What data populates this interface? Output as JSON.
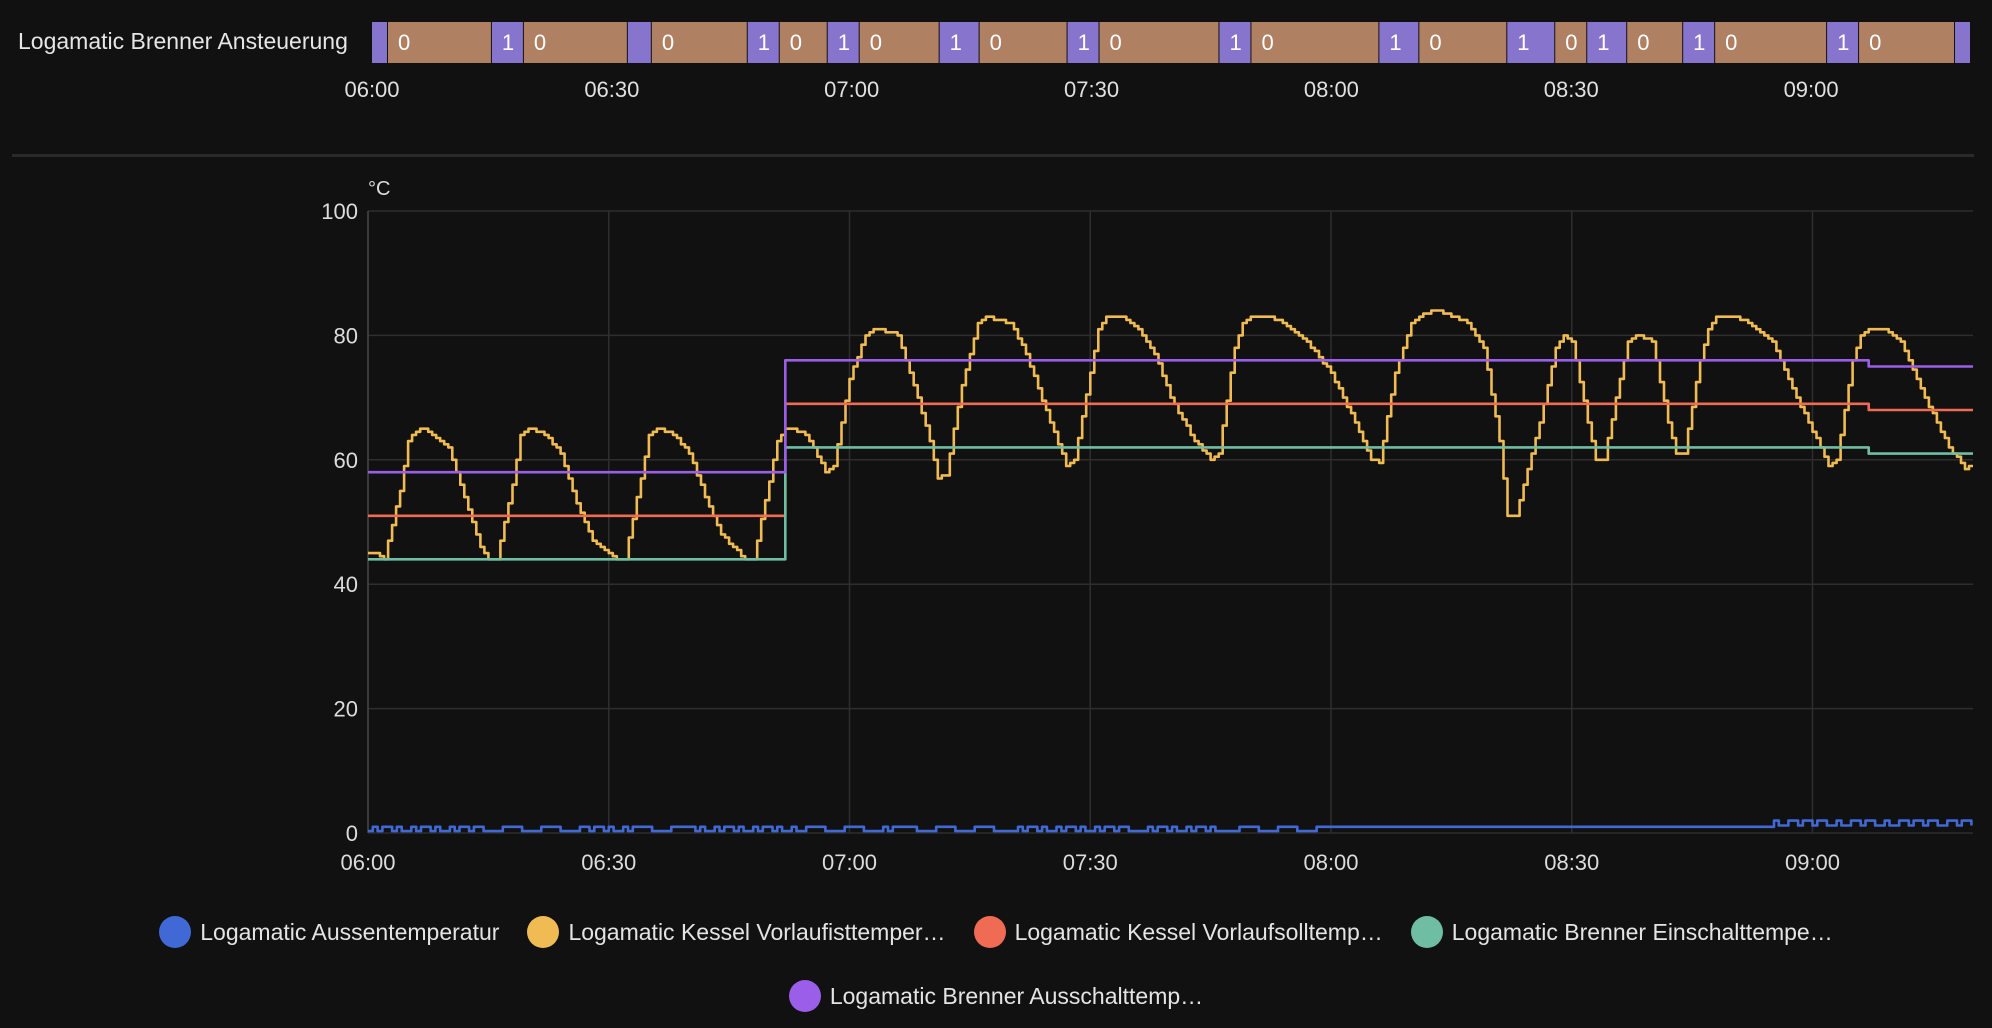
{
  "timeline": {
    "label": "Logamatic Brenner Ansteuerung",
    "colors": {
      "on": "#8774cc",
      "off": "#b08063"
    },
    "segments": [
      {
        "start": "06:00",
        "end": "06:02",
        "state": "1"
      },
      {
        "start": "06:02",
        "end": "06:15",
        "state": "0"
      },
      {
        "start": "06:15",
        "end": "06:19",
        "state": "1"
      },
      {
        "start": "06:19",
        "end": "06:32",
        "state": "0"
      },
      {
        "start": "06:32",
        "end": "06:35",
        "state": "1"
      },
      {
        "start": "06:35",
        "end": "06:47",
        "state": "0"
      },
      {
        "start": "06:47",
        "end": "06:51",
        "state": "1"
      },
      {
        "start": "06:51",
        "end": "06:57",
        "state": "0"
      },
      {
        "start": "06:57",
        "end": "07:01",
        "state": "1"
      },
      {
        "start": "07:01",
        "end": "07:11",
        "state": "0"
      },
      {
        "start": "07:11",
        "end": "07:16",
        "state": "1"
      },
      {
        "start": "07:16",
        "end": "07:27",
        "state": "0"
      },
      {
        "start": "07:27",
        "end": "07:31",
        "state": "1"
      },
      {
        "start": "07:31",
        "end": "07:46",
        "state": "0"
      },
      {
        "start": "07:46",
        "end": "07:50",
        "state": "1"
      },
      {
        "start": "07:50",
        "end": "08:06",
        "state": "0"
      },
      {
        "start": "08:06",
        "end": "08:11",
        "state": "1"
      },
      {
        "start": "08:11",
        "end": "08:22",
        "state": "0"
      },
      {
        "start": "08:22",
        "end": "08:28",
        "state": "1"
      },
      {
        "start": "08:28",
        "end": "08:32",
        "state": "0"
      },
      {
        "start": "08:32",
        "end": "08:37",
        "state": "1"
      },
      {
        "start": "08:37",
        "end": "08:44",
        "state": "0"
      },
      {
        "start": "08:44",
        "end": "08:48",
        "state": "1"
      },
      {
        "start": "08:48",
        "end": "09:02",
        "state": "0"
      },
      {
        "start": "09:02",
        "end": "09:06",
        "state": "1"
      },
      {
        "start": "09:06",
        "end": "09:18",
        "state": "0"
      },
      {
        "start": "09:18",
        "end": "09:20",
        "state": "1"
      }
    ]
  },
  "chart_data": {
    "type": "line",
    "ylabel": "°C",
    "ylim": [
      0,
      100
    ],
    "yticks": [
      "0",
      "20",
      "40",
      "60",
      "80",
      "100"
    ],
    "xlim": [
      "06:00",
      "09:20"
    ],
    "xticks": [
      "06:00",
      "06:30",
      "07:00",
      "07:30",
      "08:00",
      "08:30",
      "09:00"
    ],
    "grid": true,
    "legend_position": "bottom",
    "series": [
      {
        "name": "Logamatic Aussentemperatur",
        "color": "#4169d6",
        "style": "noisy",
        "points": [
          [
            "06:00",
            0.5
          ],
          [
            "08:00",
            0.5
          ],
          [
            "08:00",
            1
          ],
          [
            "08:55",
            1
          ],
          [
            "09:20",
            2
          ]
        ]
      },
      {
        "name": "Logamatic Kessel Vorlaufisttemper…",
        "color": "#f0bb52",
        "style": "stepped",
        "points": [
          [
            "06:00",
            45
          ],
          [
            "06:01",
            45
          ],
          [
            "06:02",
            44
          ],
          [
            "06:04",
            55
          ],
          [
            "06:05",
            63
          ],
          [
            "06:06",
            64.5
          ],
          [
            "06:07",
            65
          ],
          [
            "06:08",
            64
          ],
          [
            "06:10",
            62
          ],
          [
            "06:12",
            54
          ],
          [
            "06:14",
            46
          ],
          [
            "06:15",
            44
          ],
          [
            "06:16",
            44
          ],
          [
            "06:18",
            56
          ],
          [
            "06:19",
            64
          ],
          [
            "06:20",
            65
          ],
          [
            "06:22",
            64
          ],
          [
            "06:24",
            61
          ],
          [
            "06:26",
            53
          ],
          [
            "06:28",
            47
          ],
          [
            "06:31",
            44
          ],
          [
            "06:32",
            44
          ],
          [
            "06:34",
            57
          ],
          [
            "06:35",
            64
          ],
          [
            "06:36",
            65
          ],
          [
            "06:38",
            64
          ],
          [
            "06:40",
            61
          ],
          [
            "06:42",
            54
          ],
          [
            "06:44",
            48
          ],
          [
            "06:47",
            44
          ],
          [
            "06:48",
            44
          ],
          [
            "06:51",
            63
          ],
          [
            "06:52",
            65
          ],
          [
            "06:54",
            64.5
          ],
          [
            "06:55",
            63
          ],
          [
            "06:56",
            60.5
          ],
          [
            "06:57",
            58
          ],
          [
            "06:58",
            59
          ],
          [
            "07:00",
            73
          ],
          [
            "07:02",
            80
          ],
          [
            "07:03",
            81
          ],
          [
            "07:05",
            80.5
          ],
          [
            "07:06",
            80
          ],
          [
            "07:08",
            72
          ],
          [
            "07:10",
            63
          ],
          [
            "07:11",
            57
          ],
          [
            "07:12",
            57.5
          ],
          [
            "07:14",
            72
          ],
          [
            "07:16",
            82
          ],
          [
            "07:17",
            83
          ],
          [
            "07:18",
            82.5
          ],
          [
            "07:20",
            82
          ],
          [
            "07:22",
            77
          ],
          [
            "07:25",
            66
          ],
          [
            "07:27",
            59
          ],
          [
            "07:28",
            60
          ],
          [
            "07:30",
            74
          ],
          [
            "07:31",
            81
          ],
          [
            "07:32",
            83
          ],
          [
            "07:34",
            83
          ],
          [
            "07:36",
            81
          ],
          [
            "07:38",
            77
          ],
          [
            "07:40",
            70
          ],
          [
            "07:43",
            63
          ],
          [
            "07:45",
            60
          ],
          [
            "07:46",
            61
          ],
          [
            "07:48",
            78
          ],
          [
            "07:49",
            82
          ],
          [
            "07:50",
            83
          ],
          [
            "07:52",
            83
          ],
          [
            "07:54",
            82
          ],
          [
            "07:57",
            79
          ],
          [
            "08:00",
            74
          ],
          [
            "08:03",
            66
          ],
          [
            "08:05",
            60
          ],
          [
            "08:06",
            59.5
          ],
          [
            "08:08",
            74
          ],
          [
            "08:10",
            82
          ],
          [
            "08:11",
            83
          ],
          [
            "08:13",
            84
          ],
          [
            "08:15",
            83
          ],
          [
            "08:17",
            82
          ],
          [
            "08:19",
            78
          ],
          [
            "08:21",
            63
          ],
          [
            "08:22",
            51
          ],
          [
            "08:23",
            51
          ],
          [
            "08:26",
            66
          ],
          [
            "08:28",
            78
          ],
          [
            "08:29",
            80
          ],
          [
            "08:30",
            79
          ],
          [
            "08:32",
            66
          ],
          [
            "08:33",
            60
          ],
          [
            "08:34",
            60
          ],
          [
            "08:36",
            73
          ],
          [
            "08:37",
            79
          ],
          [
            "08:38",
            80
          ],
          [
            "08:40",
            79
          ],
          [
            "08:42",
            66
          ],
          [
            "08:43",
            61
          ],
          [
            "08:44",
            61
          ],
          [
            "08:46",
            76
          ],
          [
            "08:47",
            81
          ],
          [
            "08:48",
            83
          ],
          [
            "08:50",
            83
          ],
          [
            "08:52",
            82
          ],
          [
            "08:55",
            79
          ],
          [
            "08:58",
            70
          ],
          [
            "09:01",
            62
          ],
          [
            "09:02",
            59
          ],
          [
            "09:03",
            60
          ],
          [
            "09:05",
            76
          ],
          [
            "09:06",
            80
          ],
          [
            "09:07",
            81
          ],
          [
            "09:09",
            81
          ],
          [
            "09:11",
            79
          ],
          [
            "09:14",
            70
          ],
          [
            "09:17",
            62
          ],
          [
            "09:19",
            58.5
          ],
          [
            "09:20",
            59
          ]
        ]
      },
      {
        "name": "Logamatic Kessel Vorlaufsolltemp…",
        "color": "#ef6b54",
        "style": "step",
        "points": [
          [
            "06:00",
            51
          ],
          [
            "06:52",
            51
          ],
          [
            "06:52",
            69
          ],
          [
            "09:07",
            69
          ],
          [
            "09:07",
            68
          ],
          [
            "09:20",
            68
          ]
        ]
      },
      {
        "name": "Logamatic Brenner Einschalttempe…",
        "color": "#6fbea4",
        "style": "step",
        "points": [
          [
            "06:00",
            44
          ],
          [
            "06:52",
            44
          ],
          [
            "06:52",
            62
          ],
          [
            "09:07",
            62
          ],
          [
            "09:07",
            61
          ],
          [
            "09:20",
            61
          ]
        ]
      },
      {
        "name": "Logamatic Brenner Ausschalttemp…",
        "color": "#9a5ee8",
        "style": "step",
        "points": [
          [
            "06:00",
            58
          ],
          [
            "06:52",
            58
          ],
          [
            "06:52",
            76
          ],
          [
            "09:07",
            76
          ],
          [
            "09:07",
            75
          ],
          [
            "09:20",
            75
          ]
        ]
      }
    ]
  }
}
